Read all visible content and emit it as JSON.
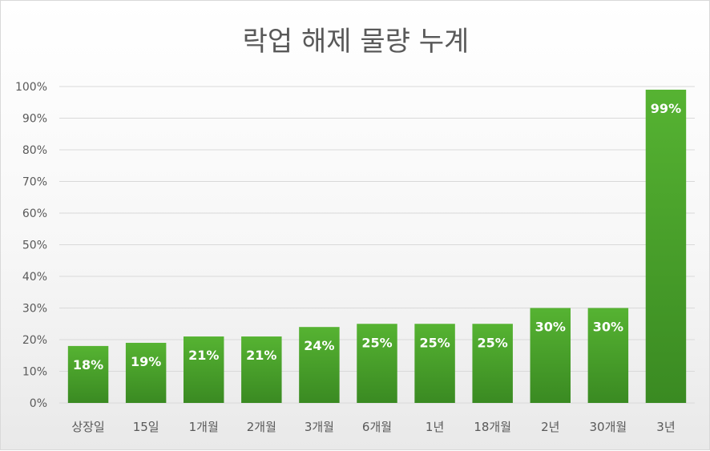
{
  "chart_data": {
    "type": "bar",
    "title": "락업 해제 물량 누계",
    "categories": [
      "상장일",
      "15일",
      "1개월",
      "2개월",
      "3개월",
      "6개월",
      "1년",
      "18개월",
      "2년",
      "30개월",
      "3년"
    ],
    "values": [
      18,
      19,
      21,
      21,
      24,
      25,
      25,
      25,
      30,
      30,
      99
    ],
    "data_labels": [
      "18%",
      "19%",
      "21%",
      "21%",
      "24%",
      "25%",
      "25%",
      "25%",
      "30%",
      "30%",
      "99%"
    ],
    "y_ticks": [
      "0%",
      "10%",
      "20%",
      "30%",
      "40%",
      "50%",
      "60%",
      "70%",
      "80%",
      "90%",
      "100%"
    ],
    "ylim": [
      0,
      100
    ],
    "grid": true,
    "legend": "none",
    "colors": {
      "bar_light": "#4ea82e",
      "bar_dark": "#3a8a22",
      "grid": "#d9d9d9",
      "text": "#595959"
    }
  }
}
